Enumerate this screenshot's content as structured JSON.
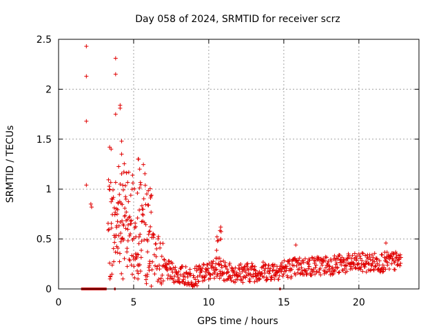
{
  "chart_data": {
    "type": "scatter",
    "title": "Day 058 of 2024, SRMTID for receiver scrz",
    "xlabel": "GPS time / hours",
    "ylabel": "SRMTID / TECUs",
    "xlim": [
      0,
      24
    ],
    "ylim": [
      0,
      2.5
    ],
    "xticks": [
      0,
      5,
      10,
      15,
      20
    ],
    "xtick_labels": [
      "0",
      "5",
      "10",
      "15",
      "20"
    ],
    "yticks": [
      0,
      0.5,
      1,
      1.5,
      2,
      2.5
    ],
    "ytick_labels": [
      "0",
      "0.5",
      "1",
      "1.5",
      "2",
      "2.5"
    ],
    "grid": true,
    "marker": "plus",
    "series_color": "#e00000",
    "data_span_hours": [
      1.5,
      22.8
    ],
    "zero_value_segments": [
      [
        1.5,
        3.2
      ],
      [
        3.7,
        3.8
      ],
      [
        14.7,
        14.8
      ]
    ],
    "notable_points": [
      {
        "x": 1.85,
        "y": 2.43
      },
      {
        "x": 1.85,
        "y": 2.13
      },
      {
        "x": 1.85,
        "y": 1.68
      },
      {
        "x": 1.85,
        "y": 1.04
      },
      {
        "x": 2.15,
        "y": 0.85
      },
      {
        "x": 2.2,
        "y": 0.82
      },
      {
        "x": 3.8,
        "y": 2.31
      },
      {
        "x": 3.8,
        "y": 2.15
      },
      {
        "x": 3.8,
        "y": 1.75
      },
      {
        "x": 4.1,
        "y": 1.84
      },
      {
        "x": 4.1,
        "y": 1.81
      },
      {
        "x": 4.2,
        "y": 1.48
      },
      {
        "x": 4.2,
        "y": 1.35
      },
      {
        "x": 3.4,
        "y": 1.42
      },
      {
        "x": 3.5,
        "y": 1.4
      },
      {
        "x": 5.3,
        "y": 1.3
      },
      {
        "x": 5.4,
        "y": 1.2
      },
      {
        "x": 10.8,
        "y": 0.62
      },
      {
        "x": 10.8,
        "y": 0.5
      },
      {
        "x": 15.8,
        "y": 0.44
      },
      {
        "x": 21.8,
        "y": 0.46
      }
    ],
    "trend": [
      {
        "x": 3.3,
        "y": 0.55
      },
      {
        "x": 4.0,
        "y": 0.75
      },
      {
        "x": 5.0,
        "y": 0.7
      },
      {
        "x": 5.5,
        "y": 0.8
      },
      {
        "x": 6.0,
        "y": 0.5
      },
      {
        "x": 6.5,
        "y": 0.35
      },
      {
        "x": 7.0,
        "y": 0.2
      },
      {
        "x": 8.0,
        "y": 0.14
      },
      {
        "x": 9.0,
        "y": 0.12
      },
      {
        "x": 10.0,
        "y": 0.17
      },
      {
        "x": 10.5,
        "y": 0.22
      },
      {
        "x": 11.0,
        "y": 0.18
      },
      {
        "x": 12.0,
        "y": 0.16
      },
      {
        "x": 14.0,
        "y": 0.18
      },
      {
        "x": 15.0,
        "y": 0.2
      },
      {
        "x": 16.0,
        "y": 0.22
      },
      {
        "x": 18.0,
        "y": 0.24
      },
      {
        "x": 20.0,
        "y": 0.26
      },
      {
        "x": 22.0,
        "y": 0.27
      },
      {
        "x": 22.8,
        "y": 0.28
      }
    ]
  }
}
